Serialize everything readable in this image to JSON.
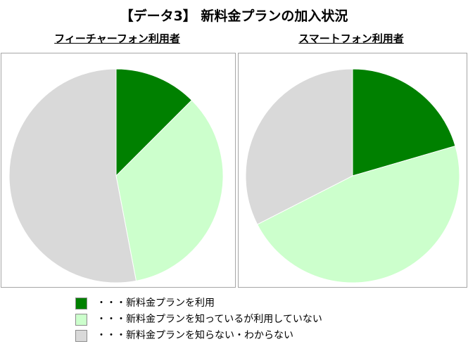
{
  "title": "【データ3】 新料金プランの加入状況",
  "colors": {
    "used": "#008000",
    "known_not_used": "#ccffcc",
    "unknown": "#d9d9d9",
    "border": "#a6a6a6",
    "slice_edge": "#ffffff"
  },
  "legend": [
    {
      "key": "used",
      "label": "・・・新料金プランを利用"
    },
    {
      "key": "known_not_used",
      "label": "・・・新料金プランを知っているが利用していない"
    },
    {
      "key": "unknown",
      "label": "・・・新料金プランを知らない・わからない"
    }
  ],
  "chart_data": [
    {
      "type": "pie",
      "title": "フィーチャーフォン利用者",
      "slices": [
        {
          "key": "used",
          "label": "新料金プランを利用",
          "value": 12.5
        },
        {
          "key": "known_not_used",
          "label": "新料金プランを知っているが利用していない",
          "value": 34.5
        },
        {
          "key": "unknown",
          "label": "新料金プランを知らない・わからない",
          "value": 53.0
        }
      ],
      "start": "12 o'clock",
      "direction": "clockwise"
    },
    {
      "type": "pie",
      "title": "スマートフォン利用者",
      "slices": [
        {
          "key": "used",
          "label": "新料金プランを利用",
          "value": 20.5
        },
        {
          "key": "known_not_used",
          "label": "新料金プランを知っているが利用していない",
          "value": 47.0
        },
        {
          "key": "unknown",
          "label": "新料金プランを知らない・わからない",
          "value": 32.5
        }
      ],
      "start": "12 o'clock",
      "direction": "clockwise"
    }
  ]
}
